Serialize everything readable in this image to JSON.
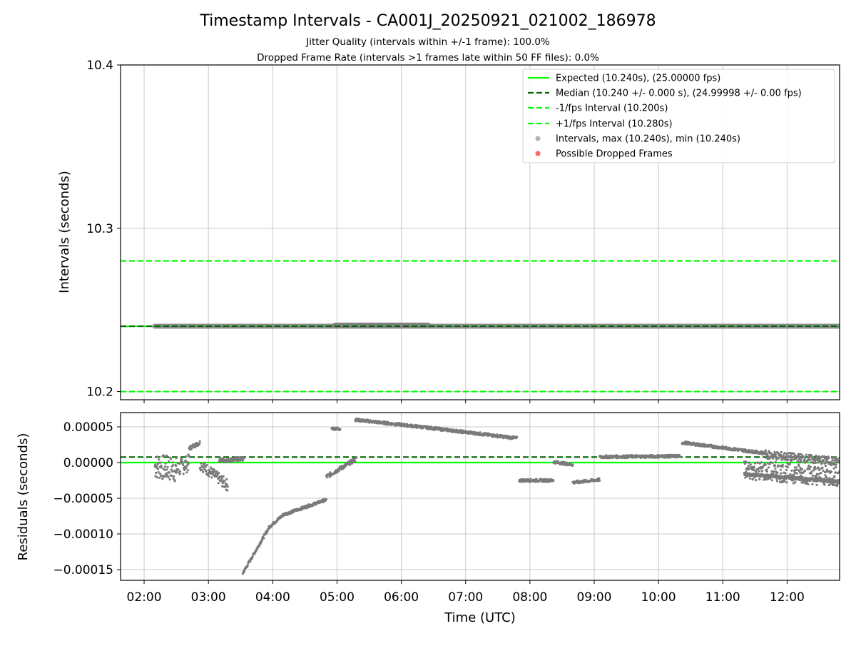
{
  "chart_data": [
    {
      "type": "scatter",
      "title": "Timestamp Intervals - CA001J_20250921_021002_186978",
      "subtitle_lines": [
        "Jitter Quality (intervals within +/-1 frame): 100.0%",
        "Dropped Frame Rate (intervals >1 frames late within 50 FF files): 0.0%"
      ],
      "ylabel": "Intervals (seconds)",
      "xlim": [
        "01:38",
        "12:49"
      ],
      "ylim": [
        10.195,
        10.4
      ],
      "yticks": [
        "10.2",
        "10.3",
        "10.4"
      ],
      "grid": true,
      "legend_position": "top-right",
      "reference_lines": [
        {
          "name": "Expected (10.240s), (25.00000 fps)",
          "y": 10.24,
          "style": "solid",
          "color": "#00ff00"
        },
        {
          "name": "Median (10.240 +/- 0.000 s), (24.99998 +/- 0.00 fps)",
          "y": 10.24,
          "style": "dashed",
          "color": "#006400"
        },
        {
          "name": "-1/fps Interval (10.200s)",
          "y": 10.2,
          "style": "dashed",
          "color": "#00ff00"
        },
        {
          "name": "+1/fps Interval (10.280s)",
          "y": 10.28,
          "style": "dashed",
          "color": "#00ff00"
        }
      ],
      "series": [
        {
          "name": "Intervals, max (10.240s), min (10.240s)",
          "color": "#808080",
          "x_range": [
            "02:10",
            "12:49"
          ],
          "y": 10.24
        },
        {
          "name": "Possible Dropped Frames",
          "color": "#ff0000",
          "x": [],
          "y": []
        }
      ]
    },
    {
      "type": "scatter",
      "xlabel": "Time (UTC)",
      "ylabel": "Residuals (seconds)",
      "xlim": [
        "01:38",
        "12:49"
      ],
      "xticks": [
        "02:00",
        "03:00",
        "04:00",
        "05:00",
        "06:00",
        "07:00",
        "08:00",
        "09:00",
        "10:00",
        "11:00",
        "12:00"
      ],
      "ylim": [
        -0.000165,
        7e-05
      ],
      "yticks": [
        "0.00005",
        "0.00000",
        "−0.00005",
        "−0.00010",
        "−0.00015"
      ],
      "grid": true,
      "reference_lines": [
        {
          "name": "Expected",
          "y": 0.0,
          "style": "solid",
          "color": "#00ff00"
        },
        {
          "name": "Median",
          "y": 7.7e-06,
          "style": "dashed",
          "color": "#006400"
        }
      ],
      "residual_segments": [
        {
          "x": [
            "02:10",
            "02:30"
          ],
          "y": [
            -5e-06,
            -1e-05
          ],
          "spread": 1.8e-05
        },
        {
          "x": [
            "02:30",
            "02:42"
          ],
          "y": [
            -1e-05,
            0.0
          ],
          "spread": 1.2e-05
        },
        {
          "x": [
            "02:42",
            "02:52"
          ],
          "y": [
            2e-05,
            2.8e-05
          ],
          "spread": 3e-06
        },
        {
          "x": [
            "02:52",
            "03:18"
          ],
          "y": [
            -2e-06,
            -3.2e-05
          ],
          "spread": 8e-06
        },
        {
          "x": [
            "03:10",
            "03:33"
          ],
          "y": [
            3e-06,
            5e-06
          ],
          "spread": 3e-06
        },
        {
          "x": [
            "03:32",
            "03:57"
          ],
          "y": [
            -0.000155,
            -9e-05
          ],
          "spread": 2e-06
        },
        {
          "x": [
            "03:57",
            "04:10"
          ],
          "y": [
            -9e-05,
            -7.3e-05
          ],
          "spread": 2e-06
        },
        {
          "x": [
            "04:10",
            "04:50"
          ],
          "y": [
            -7.3e-05,
            -5.2e-05
          ],
          "spread": 2e-06
        },
        {
          "x": [
            "04:50",
            "05:18"
          ],
          "y": [
            -2e-05,
            5e-06
          ],
          "spread": 3e-06
        },
        {
          "x": [
            "04:55",
            "05:03"
          ],
          "y": [
            4.8e-05,
            4.7e-05
          ],
          "spread": 2e-06
        },
        {
          "x": [
            "05:17",
            "06:30"
          ],
          "y": [
            6e-05,
            4.8e-05
          ],
          "spread": 2e-06
        },
        {
          "x": [
            "06:30",
            "07:48"
          ],
          "y": [
            4.8e-05,
            3.4e-05
          ],
          "spread": 2e-06
        },
        {
          "x": [
            "07:50",
            "08:22"
          ],
          "y": [
            -2.5e-05,
            -2.5e-05
          ],
          "spread": 2e-06
        },
        {
          "x": [
            "08:22",
            "08:40"
          ],
          "y": [
            1e-06,
            -3e-06
          ],
          "spread": 2e-06
        },
        {
          "x": [
            "08:40",
            "09:05"
          ],
          "y": [
            -2.8e-05,
            -2.4e-05
          ],
          "spread": 2e-06
        },
        {
          "x": [
            "09:05",
            "10:20"
          ],
          "y": [
            8e-06,
            9e-06
          ],
          "spread": 2e-06
        },
        {
          "x": [
            "10:22",
            "11:40"
          ],
          "y": [
            2.8e-05,
            1.3e-05
          ],
          "spread": 2e-06
        },
        {
          "x": [
            "11:20",
            "12:49"
          ],
          "y": [
            -1.6e-05,
            -2.7e-05
          ],
          "spread": 2e-06
        },
        {
          "x": [
            "11:40",
            "12:49"
          ],
          "y": [
            1.1e-05,
            1e-06
          ],
          "spread": 6e-06
        },
        {
          "x": [
            "11:20",
            "12:49"
          ],
          "y": [
            -1e-05,
            -2e-05
          ],
          "spread": 1.4e-05
        }
      ]
    }
  ]
}
